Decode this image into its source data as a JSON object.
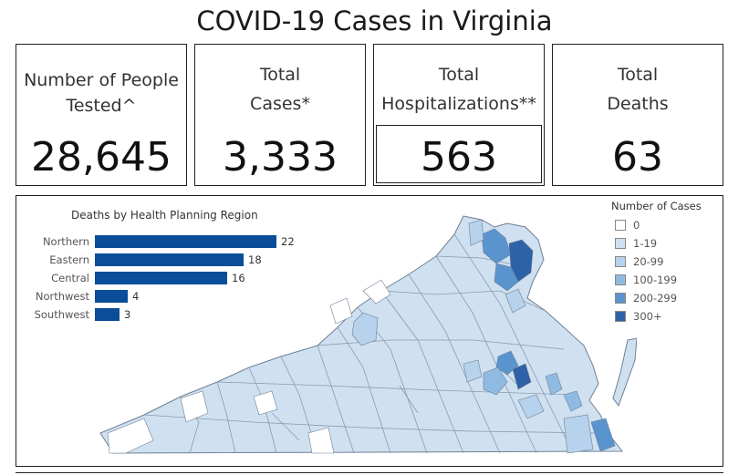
{
  "title": "COVID-19 Cases in Virginia",
  "cards": [
    {
      "label1": "Number of People",
      "label2": "Tested^",
      "value": "28,645"
    },
    {
      "label1": "Total",
      "label2": "Cases*",
      "value": "3,333"
    },
    {
      "label1": "Total",
      "label2": "Hospitalizations**",
      "value": "563"
    },
    {
      "label1": "Total",
      "label2": "Deaths",
      "value": "63"
    }
  ],
  "deaths_chart": {
    "title": "Deaths by Health Planning Region",
    "bar_color": "#0a4d99"
  },
  "chart_data": {
    "type": "bar",
    "orientation": "horizontal",
    "title": "Deaths by Health Planning Region",
    "categories": [
      "Northern",
      "Eastern",
      "Central",
      "Northwest",
      "Southwest"
    ],
    "values": [
      22,
      18,
      16,
      4,
      3
    ],
    "value_labels": [
      "22",
      "18",
      "16",
      "4",
      "3"
    ],
    "xlim": [
      0,
      22
    ],
    "grid": false
  },
  "legend": {
    "title": "Number of Cases",
    "items": [
      {
        "label": "0",
        "color": "#ffffff"
      },
      {
        "label": "1-19",
        "color": "#cfe0f1"
      },
      {
        "label": "20-99",
        "color": "#b6d2ec"
      },
      {
        "label": "100-199",
        "color": "#8fbbe3"
      },
      {
        "label": "200-299",
        "color": "#5a94cf"
      },
      {
        "label": "300+",
        "color": "#2d62a8"
      }
    ]
  }
}
